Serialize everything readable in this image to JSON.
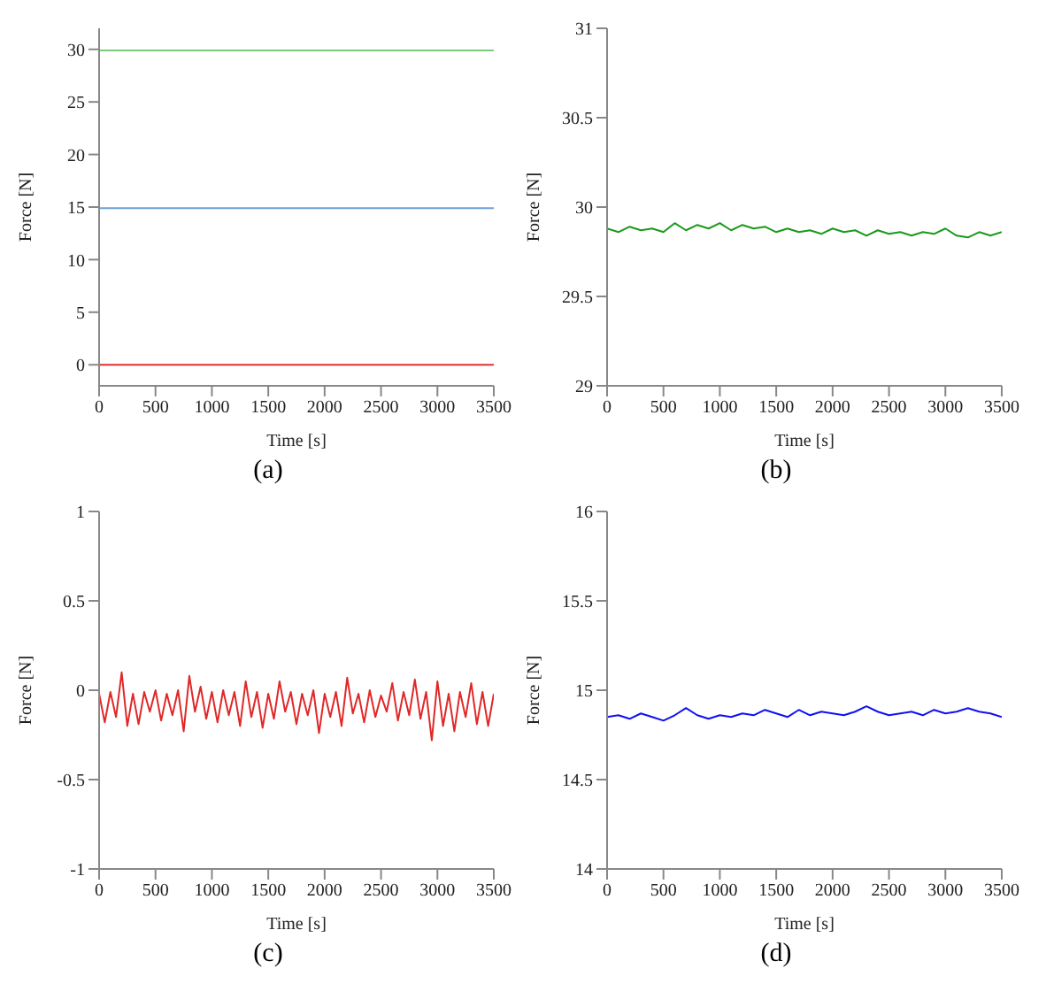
{
  "chart_data": [
    {
      "type": "line",
      "title": "(a)",
      "xlabel": "Time [s]",
      "ylabel": "Force [N]",
      "x": [
        0,
        500,
        1000,
        1500,
        2000,
        2500,
        3000,
        3500
      ],
      "xlim": [
        0,
        3500
      ],
      "xticks": [
        0,
        500,
        1000,
        1500,
        2000,
        2500,
        3000,
        3500
      ],
      "ylim": [
        -2,
        32
      ],
      "yticks": [
        0,
        5,
        10,
        15,
        20,
        25,
        30
      ],
      "series": [
        {
          "color": "#7cc97c",
          "values": [
            29.9,
            29.9,
            29.9,
            29.9,
            29.9,
            29.9,
            29.9,
            29.9
          ]
        },
        {
          "color": "#6fa0d8",
          "values": [
            14.9,
            14.9,
            14.9,
            14.9,
            14.9,
            14.9,
            14.9,
            14.9
          ]
        },
        {
          "color": "#e03030",
          "values": [
            0,
            0,
            0,
            0,
            0,
            0,
            0,
            0
          ]
        }
      ]
    },
    {
      "type": "line",
      "title": "(b)",
      "xlabel": "Time [s]",
      "ylabel": "Force [N]",
      "x": [
        0,
        100,
        200,
        300,
        400,
        500,
        600,
        700,
        800,
        900,
        1000,
        1100,
        1200,
        1300,
        1400,
        1500,
        1600,
        1700,
        1800,
        1900,
        2000,
        2100,
        2200,
        2300,
        2400,
        2500,
        2600,
        2700,
        2800,
        2900,
        3000,
        3100,
        3200,
        3300,
        3400,
        3500
      ],
      "xlim": [
        0,
        3500
      ],
      "xticks": [
        0,
        500,
        1000,
        1500,
        2000,
        2500,
        3000,
        3500
      ],
      "ylim": [
        29,
        31
      ],
      "yticks": [
        29,
        29.5,
        30,
        30.5,
        31
      ],
      "series": [
        {
          "color": "#1a9a1a",
          "values": [
            29.88,
            29.86,
            29.89,
            29.87,
            29.88,
            29.86,
            29.91,
            29.87,
            29.9,
            29.88,
            29.91,
            29.87,
            29.9,
            29.88,
            29.89,
            29.86,
            29.88,
            29.86,
            29.87,
            29.85,
            29.88,
            29.86,
            29.87,
            29.84,
            29.87,
            29.85,
            29.86,
            29.84,
            29.86,
            29.85,
            29.88,
            29.84,
            29.83,
            29.86,
            29.84,
            29.86
          ]
        }
      ]
    },
    {
      "type": "line",
      "title": "(c)",
      "xlabel": "Time [s]",
      "ylabel": "Force [N]",
      "x": [
        0,
        50,
        100,
        150,
        200,
        250,
        300,
        350,
        400,
        450,
        500,
        550,
        600,
        650,
        700,
        750,
        800,
        850,
        900,
        950,
        1000,
        1050,
        1100,
        1150,
        1200,
        1250,
        1300,
        1350,
        1400,
        1450,
        1500,
        1550,
        1600,
        1650,
        1700,
        1750,
        1800,
        1850,
        1900,
        1950,
        2000,
        2050,
        2100,
        2150,
        2200,
        2250,
        2300,
        2350,
        2400,
        2450,
        2500,
        2550,
        2600,
        2650,
        2700,
        2750,
        2800,
        2850,
        2900,
        2950,
        3000,
        3050,
        3100,
        3150,
        3200,
        3250,
        3300,
        3350,
        3400,
        3450,
        3500
      ],
      "xlim": [
        0,
        3500
      ],
      "xticks": [
        0,
        500,
        1000,
        1500,
        2000,
        2500,
        3000,
        3500
      ],
      "ylim": [
        -1,
        1
      ],
      "yticks": [
        -1,
        -0.5,
        0,
        0.5,
        1
      ],
      "series": [
        {
          "color": "#e02828",
          "values": [
            -0.02,
            -0.18,
            -0.01,
            -0.15,
            0.1,
            -0.2,
            -0.02,
            -0.19,
            -0.01,
            -0.12,
            0,
            -0.17,
            -0.02,
            -0.14,
            0,
            -0.23,
            0.08,
            -0.12,
            0.02,
            -0.16,
            -0.01,
            -0.18,
            0,
            -0.14,
            -0.01,
            -0.2,
            0.05,
            -0.15,
            -0.01,
            -0.21,
            -0.02,
            -0.16,
            0.05,
            -0.12,
            -0.01,
            -0.19,
            -0.02,
            -0.14,
            0,
            -0.24,
            -0.02,
            -0.15,
            -0.01,
            -0.2,
            0.07,
            -0.13,
            -0.02,
            -0.18,
            0,
            -0.15,
            -0.03,
            -0.12,
            0.04,
            -0.17,
            -0.01,
            -0.14,
            0.06,
            -0.16,
            -0.01,
            -0.28,
            0.05,
            -0.2,
            -0.02,
            -0.23,
            -0.01,
            -0.15,
            0.04,
            -0.19,
            -0.01,
            -0.2,
            -0.02
          ]
        }
      ]
    },
    {
      "type": "line",
      "title": "(d)",
      "xlabel": "Time [s]",
      "ylabel": "Force [N]",
      "x": [
        0,
        100,
        200,
        300,
        400,
        500,
        600,
        700,
        800,
        900,
        1000,
        1100,
        1200,
        1300,
        1400,
        1500,
        1600,
        1700,
        1800,
        1900,
        2000,
        2100,
        2200,
        2300,
        2400,
        2500,
        2600,
        2700,
        2800,
        2900,
        3000,
        3100,
        3200,
        3300,
        3400,
        3500
      ],
      "xlim": [
        0,
        3500
      ],
      "xticks": [
        0,
        500,
        1000,
        1500,
        2000,
        2500,
        3000,
        3500
      ],
      "ylim": [
        14,
        16
      ],
      "yticks": [
        14,
        14.5,
        15,
        15.5,
        16
      ],
      "series": [
        {
          "color": "#1010f0",
          "values": [
            14.85,
            14.86,
            14.84,
            14.87,
            14.85,
            14.83,
            14.86,
            14.9,
            14.86,
            14.84,
            14.86,
            14.85,
            14.87,
            14.86,
            14.89,
            14.87,
            14.85,
            14.89,
            14.86,
            14.88,
            14.87,
            14.86,
            14.88,
            14.91,
            14.88,
            14.86,
            14.87,
            14.88,
            14.86,
            14.89,
            14.87,
            14.88,
            14.9,
            14.88,
            14.87,
            14.85
          ]
        }
      ]
    }
  ]
}
